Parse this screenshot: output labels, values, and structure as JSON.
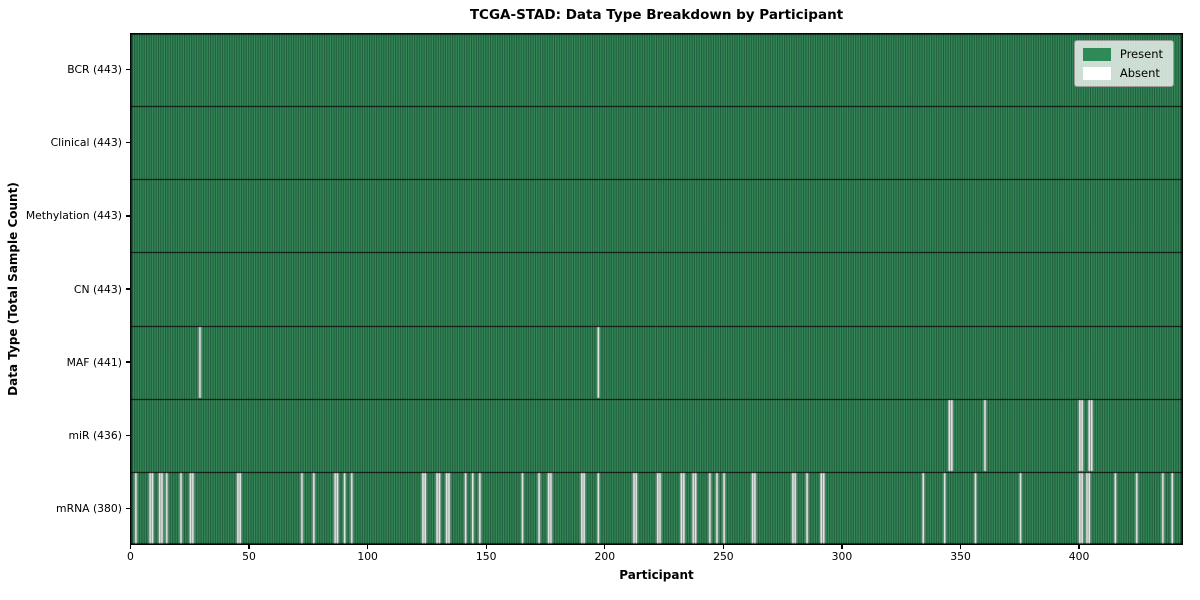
{
  "colors": {
    "present": "#2e8b57",
    "absent": "#ffffff",
    "bar_edge": "rgba(6,28,17,0.78)",
    "bar_highlight": "rgba(255,255,255,0.09)",
    "row_divider": "#0a0a0a",
    "plot_border": "#000000",
    "figure_background": "#ffffff"
  },
  "chart_data": {
    "type": "heatmap",
    "title": "TCGA-STAD: Data Type Breakdown by Participant",
    "xlabel": "Participant",
    "ylabel": "Data Type (Total Sample Count)",
    "total_participants": 443,
    "x_ticks": [
      0,
      50,
      100,
      150,
      200,
      250,
      300,
      350,
      400
    ],
    "legend_position": "upper right",
    "grid": false,
    "legend": [
      {
        "label": "Present",
        "color": "#2e8b57"
      },
      {
        "label": "Absent",
        "color": "#ffffff"
      }
    ],
    "rows": [
      {
        "label": "BCR (443)",
        "data_type": "BCR",
        "present_count": 443,
        "absent_participants": []
      },
      {
        "label": "Clinical (443)",
        "data_type": "Clinical",
        "present_count": 443,
        "absent_participants": []
      },
      {
        "label": "Methylation (443)",
        "data_type": "Methylation",
        "present_count": 443,
        "absent_participants": []
      },
      {
        "label": "CN (443)",
        "data_type": "CN",
        "present_count": 443,
        "absent_participants": []
      },
      {
        "label": "MAF (441)",
        "data_type": "MAF",
        "present_count": 441,
        "absent_participants": [
          29,
          197
        ]
      },
      {
        "label": "miR (436)",
        "data_type": "miR",
        "present_count": 436,
        "absent_participants": [
          345,
          346,
          360,
          400,
          401,
          404,
          405
        ]
      },
      {
        "label": "mRNA (380)",
        "data_type": "mRNA",
        "present_count": 380,
        "absent_participants": [
          2,
          8,
          9,
          12,
          13,
          15,
          21,
          25,
          26,
          45,
          46,
          72,
          77,
          86,
          87,
          90,
          93,
          123,
          124,
          129,
          130,
          133,
          134,
          141,
          144,
          147,
          165,
          172,
          176,
          177,
          190,
          191,
          197,
          212,
          213,
          222,
          223,
          232,
          233,
          237,
          238,
          244,
          247,
          250,
          262,
          263,
          279,
          280,
          285,
          291,
          292,
          334,
          343,
          356,
          375,
          400,
          401,
          403,
          404,
          415,
          424,
          435,
          439
        ]
      }
    ]
  }
}
